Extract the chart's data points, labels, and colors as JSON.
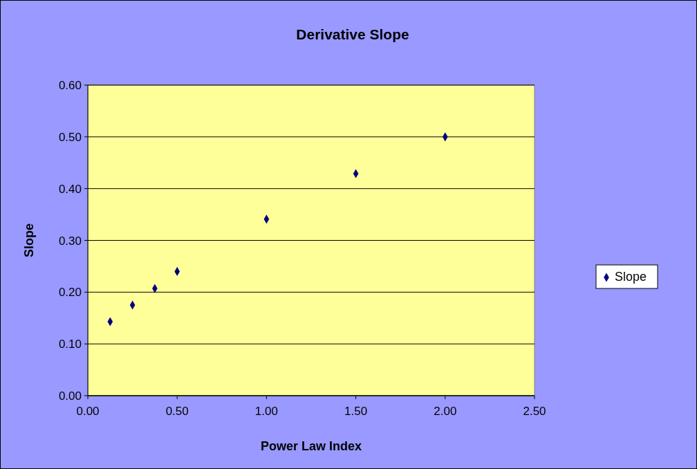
{
  "chart_data": {
    "type": "scatter",
    "title": "Derivative Slope",
    "xlabel": "Power Law Index",
    "ylabel": "Slope",
    "x": [
      0.125,
      0.25,
      0.375,
      0.5,
      1.0,
      1.5,
      2.0
    ],
    "series": [
      {
        "name": "Slope",
        "color": "#000080",
        "values": [
          0.143,
          0.175,
          0.207,
          0.24,
          0.341,
          0.429,
          0.5
        ]
      }
    ],
    "xlim": [
      0,
      2.5
    ],
    "xticks": [
      {
        "value": 0,
        "label": "0.00"
      },
      {
        "value": 0.5,
        "label": "0.50"
      },
      {
        "value": 1,
        "label": "1.00"
      },
      {
        "value": 1.5,
        "label": "1.50"
      },
      {
        "value": 2,
        "label": "2.00"
      },
      {
        "value": 2.5,
        "label": "2.50"
      }
    ],
    "ylim": [
      0,
      0.6
    ],
    "yticks": [
      {
        "value": 0,
        "label": "0.00"
      },
      {
        "value": 0.1,
        "label": "0.10"
      },
      {
        "value": 0.2,
        "label": "0.20"
      },
      {
        "value": 0.3,
        "label": "0.30"
      },
      {
        "value": 0.4,
        "label": "0.40"
      },
      {
        "value": 0.5,
        "label": "0.50"
      },
      {
        "value": 0.6,
        "label": "0.60"
      }
    ],
    "grid": "y",
    "legend": "right",
    "marker": "diamond"
  }
}
